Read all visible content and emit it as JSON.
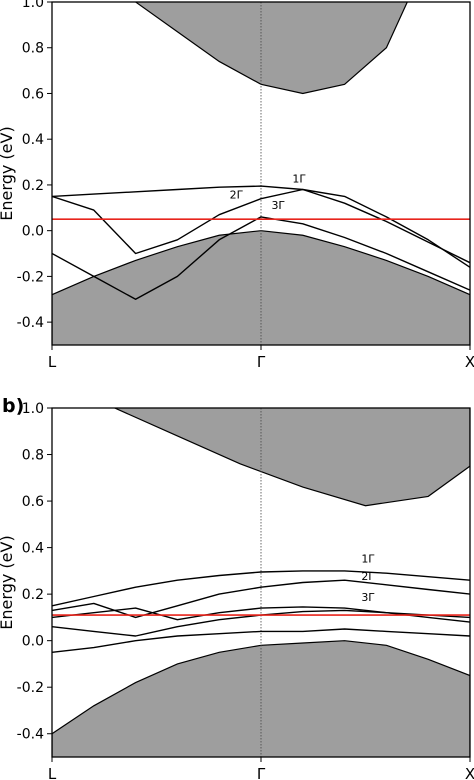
{
  "chart_data": [
    {
      "type": "line",
      "panel_label": "",
      "ylabel": "Energy (eV)",
      "xticks": [
        "L",
        "Γ",
        "X"
      ],
      "yticks": [
        -0.4,
        -0.2,
        0.0,
        0.2,
        0.4,
        0.6,
        0.8,
        1.0
      ],
      "ylim": [
        -0.5,
        1.0
      ],
      "x": [
        0,
        0.2,
        0.4,
        0.6,
        0.8,
        1.0,
        1.2,
        1.4,
        1.6,
        1.8,
        2.0
      ],
      "fermi_level": 0.05,
      "fermi_color": "#e8241c",
      "shade_color": "#9e9e9e",
      "conduction_shade": {
        "x": [
          0.4,
          0.6,
          0.8,
          1.0,
          1.2,
          1.4,
          1.6,
          1.7
        ],
        "lower": [
          1.0,
          0.87,
          0.74,
          0.64,
          0.6,
          0.64,
          0.8,
          1.0
        ]
      },
      "valence_shade": {
        "x": [
          0,
          0.2,
          0.4,
          0.6,
          0.8,
          1.0,
          1.2,
          1.4,
          1.6,
          1.8,
          2.0
        ],
        "upper": [
          -0.28,
          -0.2,
          -0.13,
          -0.07,
          -0.02,
          0.0,
          -0.02,
          -0.07,
          -0.13,
          -0.2,
          -0.28
        ]
      },
      "bands": [
        {
          "values": [
            0.15,
            0.16,
            0.17,
            0.18,
            0.19,
            0.195,
            0.18,
            0.12,
            0.04,
            -0.05,
            -0.14
          ]
        },
        {
          "values": [
            0.15,
            0.09,
            -0.1,
            -0.04,
            0.07,
            0.14,
            0.18,
            0.15,
            0.06,
            -0.04,
            -0.16
          ]
        },
        {
          "values": [
            -0.1,
            -0.2,
            -0.3,
            -0.2,
            -0.04,
            0.06,
            0.03,
            -0.03,
            -0.1,
            -0.18,
            -0.26
          ]
        }
      ],
      "annotations": [
        {
          "label": "1Γ",
          "x": 1.15,
          "y": 0.21
        },
        {
          "label": "2Γ",
          "x": 0.85,
          "y": 0.14
        },
        {
          "label": "3Γ",
          "x": 1.05,
          "y": 0.095
        }
      ]
    },
    {
      "type": "line",
      "panel_label": "b)",
      "ylabel": "Energy (eV)",
      "xticks": [
        "L",
        "Γ",
        "X"
      ],
      "yticks": [
        -0.4,
        -0.2,
        0.0,
        0.2,
        0.4,
        0.6,
        0.8,
        1.0
      ],
      "ylim": [
        -0.5,
        1.0
      ],
      "x": [
        0,
        0.2,
        0.4,
        0.6,
        0.8,
        1.0,
        1.2,
        1.4,
        1.6,
        1.8,
        2.0
      ],
      "fermi_level": 0.11,
      "fermi_color": "#e8241c",
      "shade_color": "#9e9e9e",
      "conduction_shade": {
        "x": [
          0.3,
          0.6,
          0.9,
          1.2,
          1.5,
          1.8,
          2.0
        ],
        "lower": [
          1.0,
          0.88,
          0.76,
          0.66,
          0.58,
          0.62,
          0.75
        ]
      },
      "valence_shade": {
        "x": [
          0,
          0.2,
          0.4,
          0.6,
          0.8,
          1.0,
          1.2,
          1.4,
          1.6,
          1.8,
          2.0
        ],
        "upper": [
          -0.4,
          -0.28,
          -0.18,
          -0.1,
          -0.05,
          -0.02,
          -0.01,
          0.0,
          -0.02,
          -0.08,
          -0.15
        ]
      },
      "bands": [
        {
          "values": [
            0.15,
            0.19,
            0.23,
            0.26,
            0.28,
            0.295,
            0.3,
            0.3,
            0.29,
            0.275,
            0.26
          ]
        },
        {
          "values": [
            0.13,
            0.16,
            0.1,
            0.15,
            0.2,
            0.23,
            0.25,
            0.26,
            0.24,
            0.22,
            0.2
          ]
        },
        {
          "values": [
            0.1,
            0.12,
            0.14,
            0.09,
            0.12,
            0.14,
            0.145,
            0.14,
            0.12,
            0.1,
            0.08
          ]
        },
        {
          "values": [
            0.06,
            0.04,
            0.02,
            0.06,
            0.09,
            0.11,
            0.125,
            0.13,
            0.12,
            0.11,
            0.1
          ]
        },
        {
          "values": [
            -0.05,
            -0.03,
            0.0,
            0.02,
            0.03,
            0.04,
            0.04,
            0.05,
            0.04,
            0.03,
            0.02
          ]
        }
      ],
      "annotations": [
        {
          "label": "1Γ",
          "x": 1.48,
          "y": 0.335
        },
        {
          "label": "2Γ",
          "x": 1.48,
          "y": 0.26
        },
        {
          "label": "3Γ",
          "x": 1.48,
          "y": 0.17
        }
      ]
    }
  ]
}
